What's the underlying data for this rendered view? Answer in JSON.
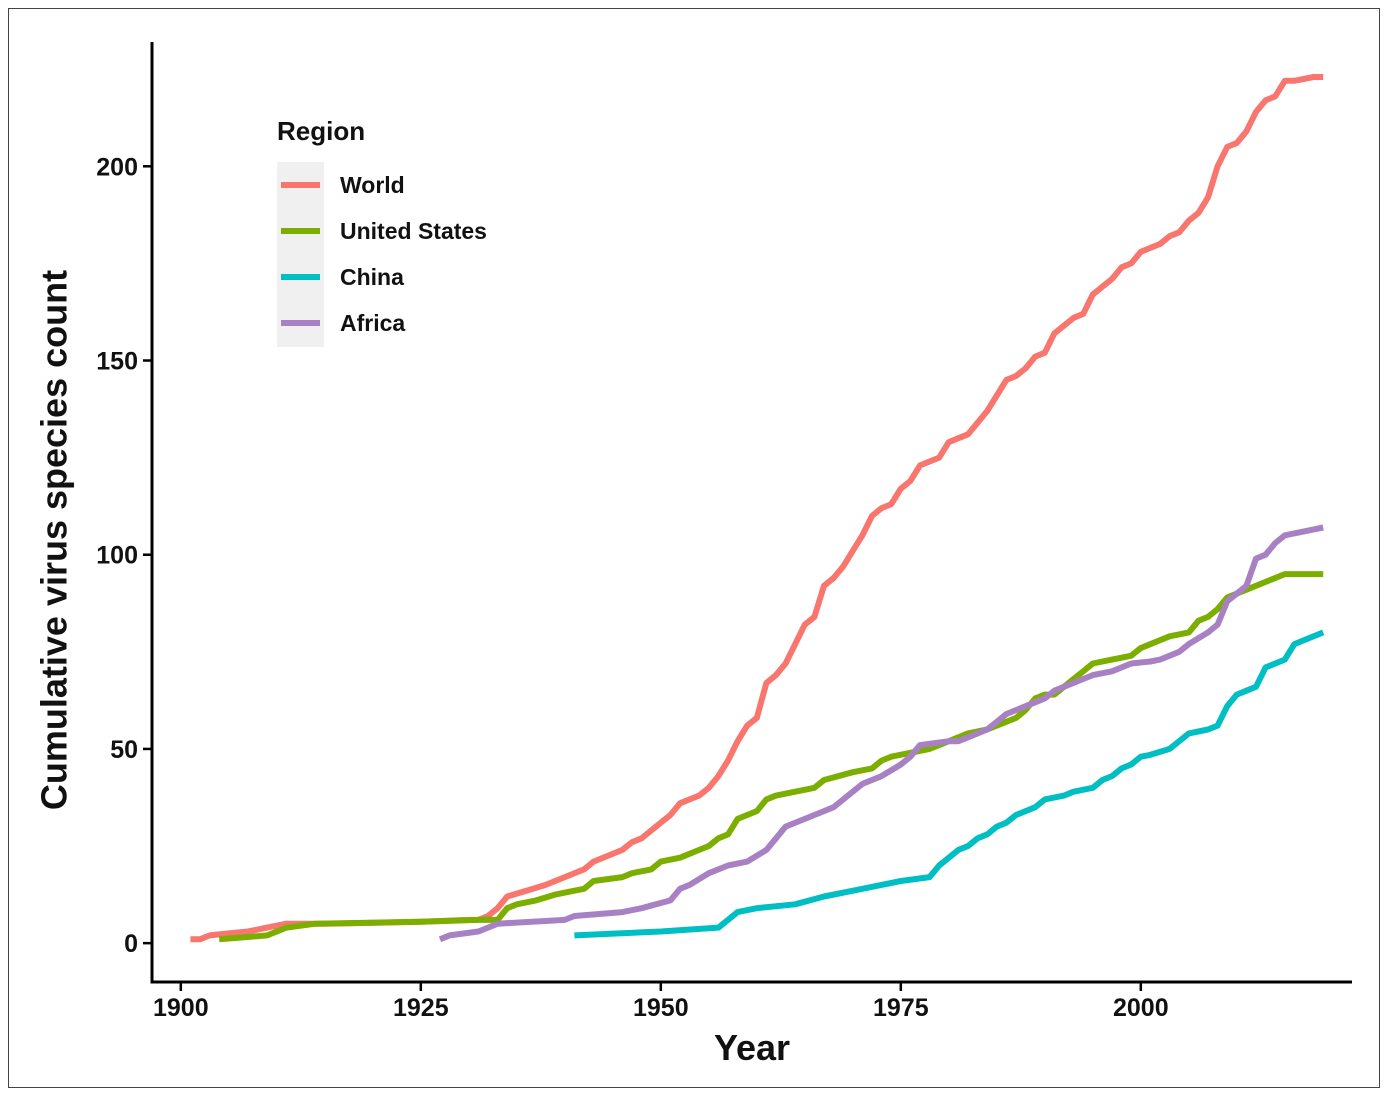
{
  "chart_data": {
    "type": "line",
    "title": "",
    "xlabel": "Year",
    "ylabel": "Cumulative virus species count",
    "xlim": [
      1897,
      2022
    ],
    "ylim": [
      -10,
      232
    ],
    "xticks": [
      1900,
      1925,
      1950,
      1975,
      2000
    ],
    "yticks": [
      0,
      50,
      100,
      150,
      200
    ],
    "grid": false,
    "legend": {
      "title": "Region",
      "position": "top-left"
    },
    "series": [
      {
        "name": "World",
        "color": "#F8766D",
        "points": [
          [
            1901,
            1
          ],
          [
            1902,
            1
          ],
          [
            1903,
            2
          ],
          [
            1905,
            2.5
          ],
          [
            1907,
            3
          ],
          [
            1909,
            4
          ],
          [
            1911,
            5
          ],
          [
            1915,
            5
          ],
          [
            1925,
            5.5
          ],
          [
            1930,
            6
          ],
          [
            1931,
            6
          ],
          [
            1932,
            7
          ],
          [
            1933,
            9
          ],
          [
            1934,
            12
          ],
          [
            1936,
            13.5
          ],
          [
            1938,
            15
          ],
          [
            1940,
            17
          ],
          [
            1942,
            19
          ],
          [
            1943,
            21
          ],
          [
            1946,
            24
          ],
          [
            1947,
            26
          ],
          [
            1948,
            27
          ],
          [
            1950,
            31
          ],
          [
            1951,
            33
          ],
          [
            1952,
            36
          ],
          [
            1953,
            37
          ],
          [
            1954,
            38
          ],
          [
            1955,
            40
          ],
          [
            1956,
            43
          ],
          [
            1957,
            47
          ],
          [
            1958,
            52
          ],
          [
            1959,
            56
          ],
          [
            1960,
            58
          ],
          [
            1961,
            67
          ],
          [
            1962,
            69
          ],
          [
            1963,
            72
          ],
          [
            1964,
            77
          ],
          [
            1965,
            82
          ],
          [
            1966,
            84
          ],
          [
            1967,
            92
          ],
          [
            1968,
            94
          ],
          [
            1969,
            97
          ],
          [
            1970,
            101
          ],
          [
            1971,
            105
          ],
          [
            1972,
            110
          ],
          [
            1973,
            112
          ],
          [
            1974,
            113
          ],
          [
            1975,
            117
          ],
          [
            1976,
            119
          ],
          [
            1977,
            123
          ],
          [
            1978,
            124
          ],
          [
            1979,
            125
          ],
          [
            1980,
            129
          ],
          [
            1981,
            130
          ],
          [
            1982,
            131
          ],
          [
            1983,
            134
          ],
          [
            1984,
            137
          ],
          [
            1985,
            141
          ],
          [
            1986,
            145
          ],
          [
            1987,
            146
          ],
          [
            1988,
            148
          ],
          [
            1989,
            151
          ],
          [
            1990,
            152
          ],
          [
            1991,
            157
          ],
          [
            1992,
            159
          ],
          [
            1993,
            161
          ],
          [
            1994,
            162
          ],
          [
            1995,
            167
          ],
          [
            1996,
            169
          ],
          [
            1997,
            171
          ],
          [
            1998,
            174
          ],
          [
            1999,
            175
          ],
          [
            2000,
            178
          ],
          [
            2001,
            179
          ],
          [
            2002,
            180
          ],
          [
            2003,
            182
          ],
          [
            2004,
            183
          ],
          [
            2005,
            186
          ],
          [
            2006,
            188
          ],
          [
            2007,
            192
          ],
          [
            2008,
            200
          ],
          [
            2009,
            205
          ],
          [
            2010,
            206
          ],
          [
            2011,
            209
          ],
          [
            2012,
            214
          ],
          [
            2013,
            217
          ],
          [
            2014,
            218
          ],
          [
            2015,
            222
          ],
          [
            2016,
            222
          ],
          [
            2018,
            223
          ],
          [
            2019,
            223
          ]
        ]
      },
      {
        "name": "United States",
        "color": "#7CAE00",
        "points": [
          [
            1904,
            1
          ],
          [
            1909,
            2
          ],
          [
            1911,
            4
          ],
          [
            1914,
            5
          ],
          [
            1925,
            5.5
          ],
          [
            1931,
            6
          ],
          [
            1933,
            6
          ],
          [
            1934,
            9
          ],
          [
            1935,
            10
          ],
          [
            1937,
            11
          ],
          [
            1939,
            12.5
          ],
          [
            1941,
            13.5
          ],
          [
            1942,
            14
          ],
          [
            1943,
            16
          ],
          [
            1946,
            17
          ],
          [
            1947,
            18
          ],
          [
            1949,
            19
          ],
          [
            1950,
            21
          ],
          [
            1952,
            22
          ],
          [
            1954,
            24
          ],
          [
            1955,
            25
          ],
          [
            1956,
            27
          ],
          [
            1957,
            28
          ],
          [
            1958,
            32
          ],
          [
            1959,
            33
          ],
          [
            1960,
            34
          ],
          [
            1961,
            37
          ],
          [
            1962,
            38
          ],
          [
            1964,
            39
          ],
          [
            1966,
            40
          ],
          [
            1967,
            42
          ],
          [
            1970,
            44
          ],
          [
            1972,
            45
          ],
          [
            1973,
            47
          ],
          [
            1974,
            48
          ],
          [
            1976,
            49
          ],
          [
            1978,
            50
          ],
          [
            1980,
            52
          ],
          [
            1981,
            53
          ],
          [
            1982,
            54
          ],
          [
            1984,
            55
          ],
          [
            1985,
            56
          ],
          [
            1987,
            58
          ],
          [
            1988,
            60
          ],
          [
            1989,
            63
          ],
          [
            1990,
            64
          ],
          [
            1991,
            64
          ],
          [
            1992,
            66
          ],
          [
            1993,
            68
          ],
          [
            1994,
            70
          ],
          [
            1995,
            72
          ],
          [
            1996,
            72.5
          ],
          [
            1997,
            73
          ],
          [
            1998,
            73.5
          ],
          [
            1999,
            74
          ],
          [
            2000,
            76
          ],
          [
            2003,
            79
          ],
          [
            2005,
            80
          ],
          [
            2006,
            83
          ],
          [
            2007,
            84
          ],
          [
            2008,
            86
          ],
          [
            2009,
            89
          ],
          [
            2011,
            91
          ],
          [
            2013,
            93
          ],
          [
            2015,
            95
          ],
          [
            2019,
            95
          ]
        ]
      },
      {
        "name": "China",
        "color": "#00BFC4",
        "points": [
          [
            1941,
            2
          ],
          [
            1950,
            3
          ],
          [
            1956,
            4
          ],
          [
            1957,
            6
          ],
          [
            1958,
            8
          ],
          [
            1960,
            9
          ],
          [
            1964,
            10
          ],
          [
            1967,
            12
          ],
          [
            1971,
            14
          ],
          [
            1975,
            16
          ],
          [
            1978,
            17
          ],
          [
            1979,
            20
          ],
          [
            1981,
            24
          ],
          [
            1982,
            25
          ],
          [
            1983,
            27
          ],
          [
            1984,
            28
          ],
          [
            1985,
            30
          ],
          [
            1986,
            31
          ],
          [
            1987,
            33
          ],
          [
            1988,
            34
          ],
          [
            1989,
            35
          ],
          [
            1990,
            37
          ],
          [
            1992,
            38
          ],
          [
            1993,
            39
          ],
          [
            1995,
            40
          ],
          [
            1996,
            42
          ],
          [
            1997,
            43
          ],
          [
            1998,
            45
          ],
          [
            1999,
            46
          ],
          [
            2000,
            48
          ],
          [
            2001,
            48.5
          ],
          [
            2003,
            50
          ],
          [
            2004,
            52
          ],
          [
            2005,
            54
          ],
          [
            2007,
            55
          ],
          [
            2008,
            56
          ],
          [
            2009,
            61
          ],
          [
            2010,
            64
          ],
          [
            2011,
            65
          ],
          [
            2012,
            66
          ],
          [
            2013,
            71
          ],
          [
            2014,
            72
          ],
          [
            2015,
            73
          ],
          [
            2016,
            77
          ],
          [
            2019,
            80
          ]
        ]
      },
      {
        "name": "Africa",
        "color": "#C77CFF",
        "displayColor": "#A881C4",
        "points": [
          [
            1927,
            1
          ],
          [
            1928,
            2
          ],
          [
            1931,
            3
          ],
          [
            1932,
            4
          ],
          [
            1933,
            5
          ],
          [
            1940,
            6
          ],
          [
            1941,
            7
          ],
          [
            1946,
            8
          ],
          [
            1948,
            9
          ],
          [
            1951,
            11
          ],
          [
            1952,
            14
          ],
          [
            1953,
            15
          ],
          [
            1955,
            18
          ],
          [
            1957,
            20
          ],
          [
            1959,
            21
          ],
          [
            1961,
            24
          ],
          [
            1962,
            27
          ],
          [
            1963,
            30
          ],
          [
            1965,
            32
          ],
          [
            1967,
            34
          ],
          [
            1968,
            35
          ],
          [
            1969,
            37
          ],
          [
            1970,
            39
          ],
          [
            1971,
            41
          ],
          [
            1973,
            43
          ],
          [
            1975,
            46
          ],
          [
            1976,
            48
          ],
          [
            1977,
            51
          ],
          [
            1980,
            52
          ],
          [
            1981,
            52
          ],
          [
            1982,
            53
          ],
          [
            1984,
            55
          ],
          [
            1985,
            57
          ],
          [
            1986,
            59
          ],
          [
            1988,
            61
          ],
          [
            1989,
            62
          ],
          [
            1990,
            63
          ],
          [
            1991,
            65
          ],
          [
            1993,
            67
          ],
          [
            1994,
            68
          ],
          [
            1995,
            69
          ],
          [
            1997,
            70
          ],
          [
            1999,
            72
          ],
          [
            2001,
            72.5
          ],
          [
            2002,
            73
          ],
          [
            2004,
            75
          ],
          [
            2005,
            77
          ],
          [
            2007,
            80
          ],
          [
            2008,
            82
          ],
          [
            2009,
            88
          ],
          [
            2010,
            90
          ],
          [
            2011,
            92
          ],
          [
            2012,
            99
          ],
          [
            2013,
            100
          ],
          [
            2014,
            103
          ],
          [
            2015,
            105
          ],
          [
            2017,
            106
          ],
          [
            2019,
            107
          ]
        ]
      }
    ]
  }
}
